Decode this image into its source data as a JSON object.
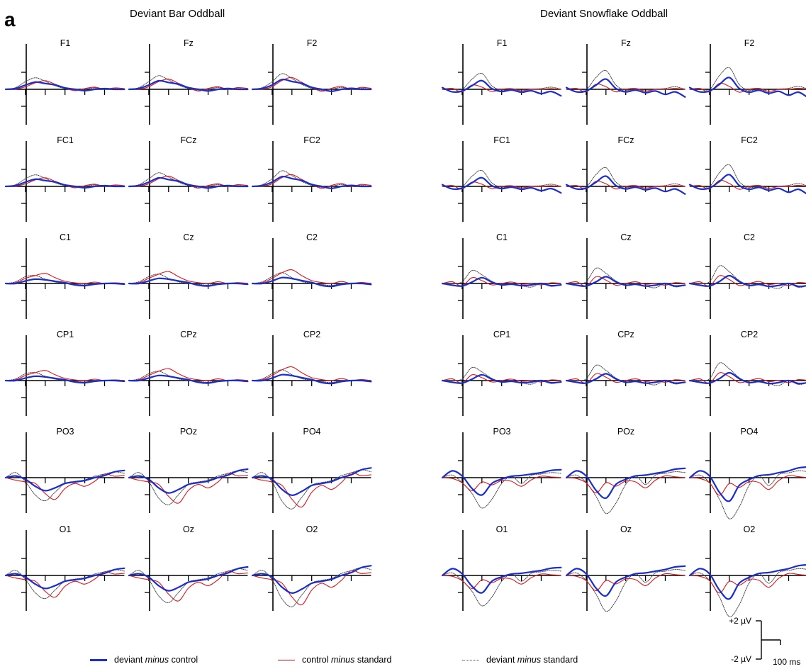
{
  "panel_letter": "a",
  "legend": [
    {
      "pre": "deviant ",
      "mid": "minus",
      "post": " control",
      "color": "#1a2ecc",
      "style": "solid-thick"
    },
    {
      "pre": "control ",
      "mid": "minus",
      "post": " standard",
      "color": "#e0161b",
      "style": "solid-thin"
    },
    {
      "pre": "deviant ",
      "mid": "minus",
      "post": " standard",
      "color": "#444444",
      "style": "dotted"
    }
  ],
  "scale_bar": {
    "top_label": "+2 µV",
    "bottom_label": "-2 µV",
    "time_label": "100 ms"
  },
  "chart_data": [
    {
      "type": "line",
      "title": "Deviant Bar Oddball",
      "electrodes": [
        [
          "F1",
          "Fz",
          "F2"
        ],
        [
          "FC1",
          "FCz",
          "FC2"
        ],
        [
          "C1",
          "Cz",
          "C2"
        ],
        [
          "CP1",
          "CPz",
          "CP2"
        ],
        [
          "PO3",
          "POz",
          "PO4"
        ],
        [
          "O1",
          "Oz",
          "O2"
        ]
      ],
      "x_unit": "ms",
      "xlim": [
        -100,
        500
      ],
      "x_ticks": [
        0,
        100,
        200,
        300,
        400
      ],
      "y_unit": "µV",
      "ylim": [
        -4,
        4
      ],
      "y_ticks": [
        -2,
        2
      ],
      "series": [
        {
          "name": "deviant minus control",
          "color": "#1a2ecc"
        },
        {
          "name": "control minus standard",
          "color": "#e0161b"
        },
        {
          "name": "deviant minus standard",
          "color": "#444444"
        }
      ],
      "waveforms": {
        "frontal": {
          "x": [
            -100,
            -50,
            0,
            50,
            100,
            150,
            200,
            250,
            300,
            350,
            400,
            450,
            500
          ],
          "y": [
            [
              0,
              0.1,
              0.5,
              1.0,
              0.8,
              0.6,
              0.2,
              0,
              -0.2,
              0,
              0.1,
              0,
              0
            ],
            [
              0,
              0,
              0.3,
              0.9,
              1.2,
              0.7,
              0.2,
              -0.2,
              0.1,
              0.3,
              0,
              0.2,
              0.1
            ],
            [
              0,
              0.2,
              0.9,
              1.6,
              1.1,
              0.5,
              0.1,
              -0.1,
              0,
              0.2,
              0,
              0.1,
              0
            ]
          ]
        },
        "central": {
          "x": [
            -100,
            -50,
            0,
            50,
            100,
            150,
            200,
            250,
            300,
            350,
            400,
            450,
            500
          ],
          "y": [
            [
              0,
              0,
              0.3,
              0.6,
              0.5,
              0.3,
              0.1,
              -0.2,
              -0.3,
              -0.1,
              0,
              0,
              -0.1
            ],
            [
              0,
              0.1,
              0.6,
              1.1,
              1.4,
              0.8,
              0.3,
              0.1,
              0,
              0.2,
              0,
              0.1,
              0
            ],
            [
              0,
              0.2,
              0.8,
              1.1,
              0.6,
              0.2,
              0,
              -0.1,
              -0.2,
              0,
              0,
              0.1,
              0
            ]
          ]
        },
        "occipital": {
          "x": [
            -100,
            -50,
            0,
            50,
            100,
            150,
            200,
            250,
            300,
            350,
            400,
            450,
            500
          ],
          "y": [
            [
              0,
              0.2,
              -0.2,
              -1.2,
              -1.8,
              -1.4,
              -0.8,
              -0.6,
              -0.4,
              0,
              0.3,
              0.8,
              1.0
            ],
            [
              0,
              -0.3,
              -0.5,
              -0.8,
              -2.2,
              -3.0,
              -1.5,
              -0.8,
              -1.2,
              -0.5,
              0.5,
              0.2,
              0.3
            ],
            [
              0,
              0.6,
              -0.5,
              -2.4,
              -3.2,
              -2.0,
              -0.8,
              -0.5,
              -0.3,
              0.2,
              0.5,
              0.8,
              0.6
            ]
          ]
        }
      }
    },
    {
      "type": "line",
      "title": "Deviant Snowflake Oddball",
      "electrodes": [
        [
          "F1",
          "Fz",
          "F2"
        ],
        [
          "FC1",
          "FCz",
          "FC2"
        ],
        [
          "C1",
          "Cz",
          "C2"
        ],
        [
          "CP1",
          "CPz",
          "CP2"
        ],
        [
          "PO3",
          "POz",
          "PO4"
        ],
        [
          "O1",
          "Oz",
          "O2"
        ]
      ],
      "x_unit": "ms",
      "xlim": [
        -100,
        500
      ],
      "x_ticks": [
        0,
        100,
        200,
        300,
        400
      ],
      "y_unit": "µV",
      "ylim": [
        -4,
        4
      ],
      "y_ticks": [
        -2,
        2
      ],
      "series": [
        {
          "name": "deviant minus control",
          "color": "#1a2ecc"
        },
        {
          "name": "control minus standard",
          "color": "#e0161b"
        },
        {
          "name": "deviant minus standard",
          "color": "#444444"
        }
      ],
      "waveforms": {
        "frontal": {
          "x": [
            -100,
            -50,
            0,
            50,
            100,
            150,
            200,
            250,
            300,
            350,
            400,
            450,
            500
          ],
          "y": [
            [
              0.2,
              -0.3,
              -0.2,
              0.5,
              1.2,
              0.1,
              -0.3,
              -0.1,
              -0.4,
              -0.2,
              -0.6,
              -0.3,
              -0.9
            ],
            [
              0,
              0.1,
              -0.3,
              0.6,
              0.3,
              -0.3,
              0,
              0.1,
              -0.2,
              0,
              0,
              0.1,
              0
            ],
            [
              0,
              0.1,
              0,
              1.4,
              2.2,
              0.5,
              -0.1,
              0,
              -0.2,
              0,
              0.1,
              0.3,
              0
            ]
          ]
        },
        "central": {
          "x": [
            -100,
            -50,
            0,
            50,
            100,
            150,
            200,
            250,
            300,
            350,
            400,
            450,
            500
          ],
          "y": [
            [
              0,
              -0.2,
              -0.3,
              0.2,
              0.8,
              0.2,
              -0.2,
              -0.1,
              -0.3,
              -0.2,
              0,
              -0.3,
              -0.2
            ],
            [
              0,
              0.2,
              -0.3,
              0.8,
              0.4,
              -0.2,
              0,
              0.2,
              -0.1,
              0,
              -0.2,
              0.1,
              0
            ],
            [
              0,
              0,
              0.2,
              1.8,
              1.2,
              0.3,
              -0.2,
              0,
              -0.3,
              -0.5,
              0,
              -0.4,
              -0.2
            ]
          ]
        },
        "occipital": {
          "x": [
            -100,
            -50,
            0,
            50,
            100,
            150,
            200,
            250,
            300,
            350,
            400,
            450,
            500
          ],
          "y": [
            [
              0,
              0.8,
              0.2,
              -1.5,
              -2.4,
              -0.8,
              -0.2,
              0.2,
              0.3,
              0.5,
              0.7,
              1.0,
              1.1
            ],
            [
              0,
              -0.1,
              -0.6,
              -1.8,
              -0.6,
              -1.0,
              -0.4,
              -0.5,
              -1.2,
              -0.3,
              0.2,
              0.1,
              0
            ],
            [
              0,
              0.3,
              -0.6,
              -2.2,
              -4.2,
              -3.0,
              -0.8,
              0.2,
              -0.8,
              0.3,
              0.5,
              0.7,
              0.6
            ]
          ]
        }
      }
    }
  ]
}
